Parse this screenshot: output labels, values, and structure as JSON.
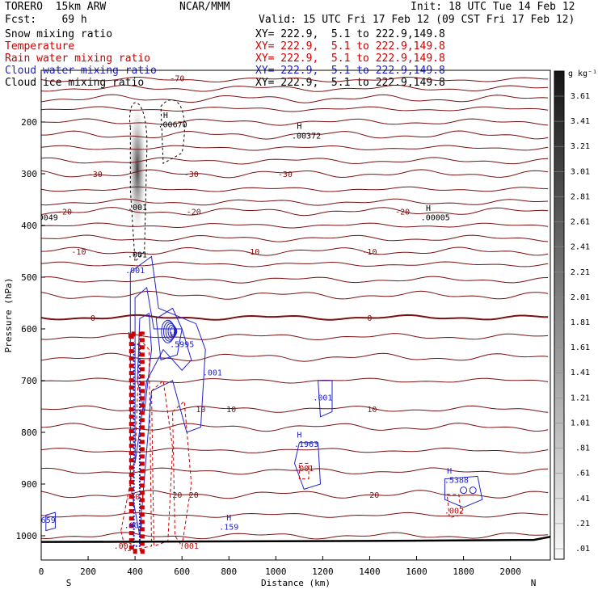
{
  "header": {
    "model": "TORERO  15km ARW",
    "center": "NCAR/MMM",
    "init": "Init: 18 UTC Tue 14 Feb 12",
    "fcst": "Fcst:    69 h",
    "valid": "Valid: 15 UTC Fri 17 Feb 12 (09 CST Fri 17 Feb 12)"
  },
  "fields": [
    {
      "name": "Snow mixing ratio",
      "xy": "XY= 222.9,  5.1 to 222.9,149.8",
      "color": "#000000"
    },
    {
      "name": "Temperature",
      "xy": "XY= 222.9,  5.1 to 222.9,149.8",
      "color": "#cc0000"
    },
    {
      "name": "Rain water mixing ratio",
      "xy": "XY= 222.9,  5.1 to 222.9,149.8",
      "color": "#cc0000"
    },
    {
      "name": "Cloud water mixing ratio",
      "xy": "XY= 222.9,  5.1 to 222.9,149.8",
      "color": "#2222cc"
    },
    {
      "name": "Cloud ice mixing ratio",
      "xy": "XY= 222.9,  5.1 to 222.9,149.8",
      "color": "#000000"
    }
  ],
  "chart_data": {
    "type": "cross-section",
    "xlabel": "Distance (km)",
    "ylabel": "Pressure (hPa)",
    "xlim": [
      0,
      2170
    ],
    "ylim_hpa": [
      1050,
      100
    ],
    "x_ticks": [
      0,
      200,
      400,
      600,
      800,
      1000,
      1200,
      1400,
      1600,
      1800,
      2000
    ],
    "y_ticks": [
      200,
      300,
      400,
      500,
      600,
      700,
      800,
      900,
      1000
    ],
    "left_end": "S",
    "right_end": "N",
    "colorbar": {
      "unit": "g kg⁻¹",
      "ticks": [
        "3.61",
        "3.41",
        "3.21",
        "3.01",
        "2.81",
        "2.61",
        "2.41",
        "2.21",
        "2.01",
        "1.81",
        "1.61",
        "1.41",
        "1.21",
        "1.01",
        ".81",
        ".61",
        ".41",
        ".21",
        ".01"
      ]
    },
    "temperature_contours": [
      {
        "value": "-70",
        "p": 115,
        "labels": [
          {
            "x": 580,
            "text": "-70"
          }
        ]
      },
      {
        "value": "-30",
        "p": 300,
        "labels": [
          {
            "x": 230,
            "text": "-30"
          },
          {
            "x": 640,
            "text": "-30"
          },
          {
            "x": 1040,
            "text": "-30"
          }
        ]
      },
      {
        "value": "-20",
        "p": 373,
        "labels": [
          {
            "x": 100,
            "text": "-20"
          },
          {
            "x": 650,
            "text": "-20"
          },
          {
            "x": 1540,
            "text": "-20"
          }
        ]
      },
      {
        "value": "-10",
        "p": 450,
        "labels": [
          {
            "x": 160,
            "text": "-10"
          },
          {
            "x": 900,
            "text": "-10"
          },
          {
            "x": 1400,
            "text": "-10"
          }
        ]
      },
      {
        "value": "0",
        "p": 578,
        "labels": [
          {
            "x": 220,
            "text": "0"
          },
          {
            "x": 1400,
            "text": "0"
          }
        ]
      },
      {
        "value": "10",
        "p": 755,
        "labels": [
          {
            "x": 680,
            "text": "10"
          },
          {
            "x": 810,
            "text": "10"
          },
          {
            "x": 1410,
            "text": "10"
          }
        ]
      },
      {
        "value": "20",
        "p": 920,
        "labels": [
          {
            "x": 580,
            "text": "20"
          },
          {
            "x": 650,
            "text": "20"
          },
          {
            "x": 1420,
            "text": "20"
          }
        ]
      }
    ],
    "annotations": [
      {
        "text": "H",
        "x": 530,
        "p": 192,
        "color": "#000000"
      },
      {
        "text": ".00670",
        "x": 560,
        "p": 210,
        "color": "#000000"
      },
      {
        "text": "H",
        "x": 1100,
        "p": 213,
        "color": "#000000"
      },
      {
        "text": ".00372",
        "x": 1130,
        "p": 232,
        "color": "#000000"
      },
      {
        "text": "H",
        "x": 1650,
        "p": 372,
        "color": "#000000"
      },
      {
        "text": ".00005",
        "x": 1680,
        "p": 390,
        "color": "#000000"
      },
      {
        "text": "0049",
        "x": 30,
        "p": 390,
        "color": "#000000"
      },
      {
        "text": ".001",
        "x": 410,
        "p": 370,
        "color": "#000000"
      },
      {
        "text": ".001",
        "x": 410,
        "p": 462,
        "color": "#000000"
      },
      {
        "text": ".001",
        "x": 400,
        "p": 492,
        "color": "#2222cc"
      },
      {
        "text": "H",
        "x": 560,
        "p": 617,
        "color": "#2222cc"
      },
      {
        "text": ".5995",
        "x": 600,
        "p": 635,
        "color": "#2222cc"
      },
      {
        "text": "H",
        "x": 380,
        "p": 617,
        "color": "#cc0000"
      },
      {
        "text": ".001",
        "x": 730,
        "p": 690,
        "color": "#2222cc"
      },
      {
        "text": ".001",
        "x": 1200,
        "p": 738,
        "color": "#2222cc"
      },
      {
        "text": "H",
        "x": 1100,
        "p": 810,
        "color": "#2222cc"
      },
      {
        "text": ".1963",
        "x": 1130,
        "p": 828,
        "color": "#2222cc"
      },
      {
        "text": ".001",
        "x": 1120,
        "p": 875,
        "color": "#cc0000"
      },
      {
        "text": "H",
        "x": 1740,
        "p": 880,
        "color": "#2222cc"
      },
      {
        "text": ".5388",
        "x": 1770,
        "p": 898,
        "color": "#2222cc"
      },
      {
        "text": ".002",
        "x": 1760,
        "p": 957,
        "color": "#cc0000"
      },
      {
        "text": ".401",
        "x": 400,
        "p": 930,
        "color": "#cc0000"
      },
      {
        "text": ".001",
        "x": 395,
        "p": 985,
        "color": "#2222cc"
      },
      {
        "text": ".001",
        "x": 350,
        "p": 1025,
        "color": "#cc0000"
      },
      {
        "text": ".001",
        "x": 630,
        "p": 1025,
        "color": "#cc0000"
      },
      {
        "text": "H",
        "x": 800,
        "p": 970,
        "color": "#2222cc"
      },
      {
        "text": ".159",
        "x": 800,
        "p": 988,
        "color": "#2222cc"
      },
      {
        "text": "659",
        "x": 30,
        "p": 975,
        "color": "#2222cc"
      }
    ]
  }
}
